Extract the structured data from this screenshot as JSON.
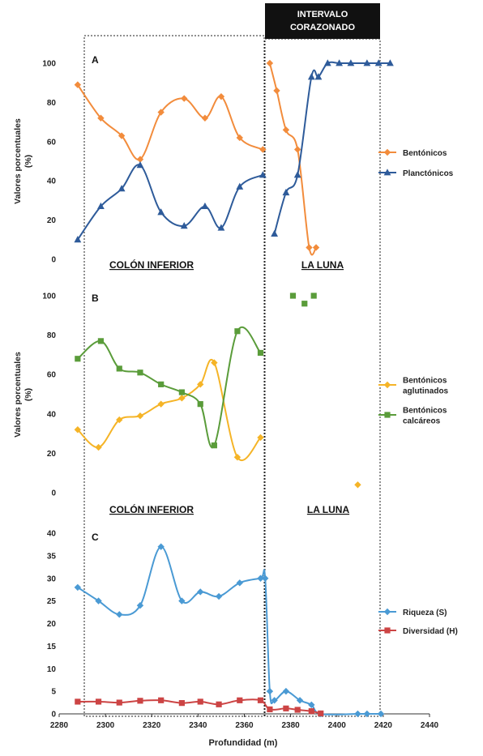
{
  "header": {
    "line1": "INTERVALO",
    "line2": "CORAZONADO"
  },
  "colors": {
    "orange": "#f28c3c",
    "blue": "#2e5b9a",
    "gold": "#f5b427",
    "green": "#5a9c3a",
    "skyblue": "#4a9ad4",
    "red": "#cc4444"
  },
  "section_labels": {
    "colon_a": "COLÓN INFERIOR",
    "luna_a": "LA LUNA",
    "colon_b": "COLÓN INFERIOR",
    "luna_b": "LA LUNA"
  },
  "x_axis": {
    "label": "Profundidad (m)",
    "ticks": [
      "2280",
      "2300",
      "2320",
      "2340",
      "2360",
      "2380",
      "2400",
      "2420",
      "2440"
    ]
  },
  "chart_data": [
    {
      "panel": "A",
      "type": "line",
      "ylabel": "Valores porcentuales (%)",
      "ylim": [
        0,
        100
      ],
      "yticks": [
        "0",
        "20",
        "40",
        "60",
        "80",
        "100"
      ],
      "legend": "right",
      "series": [
        {
          "name": "Bentónicos",
          "marker": "diamond",
          "color": "#f28c3c",
          "segments": [
            [
              [
                2288,
                89
              ],
              [
                2298,
                72
              ],
              [
                2307,
                63
              ],
              [
                2315,
                51
              ],
              [
                2324,
                75
              ],
              [
                2334,
                82
              ],
              [
                2343,
                72
              ],
              [
                2350,
                83
              ],
              [
                2358,
                62
              ],
              [
                2368,
                56
              ]
            ],
            [
              [
                2371,
                100
              ],
              [
                2374,
                86
              ],
              [
                2378,
                66
              ],
              [
                2383,
                56
              ],
              [
                2388,
                6
              ],
              [
                2391,
                6
              ]
            ]
          ]
        },
        {
          "name": "Planctónicos",
          "marker": "triangle",
          "color": "#2e5b9a",
          "segments": [
            [
              [
                2288,
                10
              ],
              [
                2298,
                27
              ],
              [
                2307,
                36
              ],
              [
                2315,
                48
              ],
              [
                2324,
                24
              ],
              [
                2334,
                17
              ],
              [
                2343,
                27
              ],
              [
                2350,
                16
              ],
              [
                2358,
                37
              ],
              [
                2368,
                43
              ]
            ],
            [
              [
                2373,
                13
              ],
              [
                2378,
                34
              ],
              [
                2383,
                43
              ],
              [
                2389,
                93
              ],
              [
                2392,
                93
              ],
              [
                2396,
                100
              ],
              [
                2401,
                100
              ],
              [
                2406,
                100
              ],
              [
                2413,
                100
              ],
              [
                2418,
                100
              ],
              [
                2423,
                100
              ]
            ]
          ]
        }
      ]
    },
    {
      "panel": "B",
      "type": "line",
      "ylabel": "Valores porcentuales (%)",
      "ylim": [
        0,
        100
      ],
      "yticks": [
        "0",
        "20",
        "40",
        "60",
        "80",
        "100"
      ],
      "legend": "right",
      "series": [
        {
          "name": "Bentónicos aglutinados",
          "legend_lines": [
            "Bentónicos",
            "aglutinados"
          ],
          "marker": "diamond",
          "color": "#f5b427",
          "segments": [
            [
              [
                2288,
                32
              ],
              [
                2297,
                23
              ],
              [
                2306,
                37
              ],
              [
                2315,
                39
              ],
              [
                2324,
                45
              ],
              [
                2333,
                48
              ],
              [
                2341,
                55
              ],
              [
                2347,
                66
              ],
              [
                2357,
                18
              ],
              [
                2367,
                28
              ]
            ],
            [
              [
                2409,
                4
              ]
            ]
          ]
        },
        {
          "name": "Bentónicos calcáreos",
          "legend_lines": [
            "Bentónicos",
            "calcáreos"
          ],
          "marker": "square",
          "color": "#5a9c3a",
          "segments": [
            [
              [
                2288,
                68
              ],
              [
                2298,
                77
              ],
              [
                2306,
                63
              ],
              [
                2315,
                61
              ],
              [
                2324,
                55
              ],
              [
                2333,
                51
              ],
              [
                2341,
                45
              ],
              [
                2347,
                24
              ],
              [
                2357,
                82
              ],
              [
                2367,
                71
              ]
            ],
            [
              [
                2381,
                100
              ]
            ],
            [
              [
                2386,
                96
              ]
            ],
            [
              [
                2390,
                100
              ]
            ]
          ]
        }
      ]
    },
    {
      "panel": "C",
      "type": "line",
      "ylabel": "",
      "ylim": [
        0,
        40
      ],
      "yticks": [
        "0",
        "5",
        "10",
        "15",
        "20",
        "25",
        "30",
        "35",
        "40"
      ],
      "legend": "right",
      "series": [
        {
          "name": "Riqueza (S)",
          "marker": "diamond",
          "color": "#4a9ad4",
          "segments": [
            [
              [
                2288,
                28
              ],
              [
                2297,
                25
              ],
              [
                2306,
                22
              ],
              [
                2315,
                24
              ],
              [
                2324,
                37
              ],
              [
                2333,
                25
              ],
              [
                2341,
                27
              ],
              [
                2349,
                26
              ],
              [
                2358,
                29
              ],
              [
                2367,
                30
              ],
              [
                2369,
                30
              ],
              [
                2371,
                5
              ],
              [
                2373,
                3
              ],
              [
                2378,
                5
              ],
              [
                2384,
                3
              ],
              [
                2389,
                2
              ],
              [
                2393,
                0
              ],
              [
                2409,
                0
              ],
              [
                2413,
                0
              ],
              [
                2419,
                0
              ]
            ]
          ]
        },
        {
          "name": "Diversidad (H)",
          "marker": "square",
          "color": "#cc4444",
          "segments": [
            [
              [
                2288,
                2.7
              ],
              [
                2297,
                2.7
              ],
              [
                2306,
                2.5
              ],
              [
                2315,
                2.9
              ],
              [
                2324,
                3
              ],
              [
                2333,
                2.4
              ],
              [
                2341,
                2.7
              ],
              [
                2349,
                2.1
              ],
              [
                2358,
                3
              ],
              [
                2367,
                3
              ],
              [
                2371,
                1
              ],
              [
                2378,
                1.2
              ],
              [
                2383,
                0.9
              ],
              [
                2389,
                0.6
              ],
              [
                2393,
                0.1
              ]
            ]
          ]
        }
      ]
    }
  ]
}
